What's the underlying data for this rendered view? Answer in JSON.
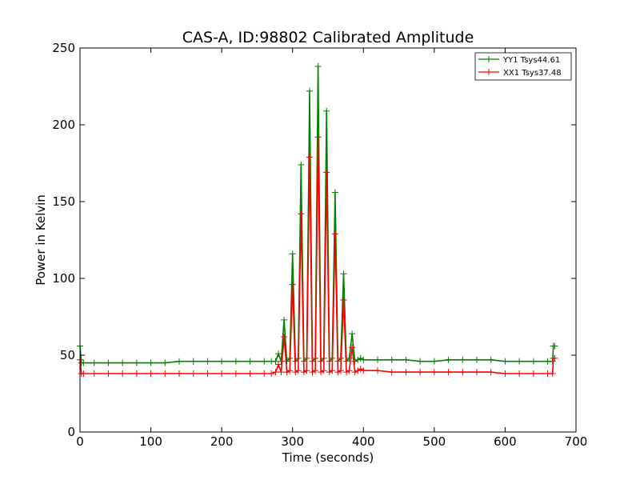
{
  "chart_data": {
    "type": "line",
    "title": "CAS-A, ID:98802 Calibrated Amplitude",
    "xlabel": "Time (seconds)",
    "ylabel": "Power in Kelvin",
    "xlim": [
      0,
      700
    ],
    "ylim": [
      0,
      250
    ],
    "xticks": [
      "0",
      "100",
      "200",
      "300",
      "400",
      "500",
      "600",
      "700"
    ],
    "yticks": [
      "0",
      "50",
      "100",
      "150",
      "200",
      "250"
    ],
    "grid": false,
    "legend_position": "top-right",
    "series": [
      {
        "name": "YY1 Tsys44.61",
        "color": "#008000",
        "x": [
          0,
          2,
          5,
          20,
          40,
          60,
          80,
          100,
          120,
          140,
          160,
          180,
          200,
          220,
          240,
          260,
          270,
          276,
          280,
          284,
          288,
          292,
          296,
          300,
          304,
          308,
          312,
          316,
          320,
          324,
          328,
          332,
          336,
          340,
          344,
          348,
          352,
          356,
          360,
          364,
          368,
          372,
          376,
          380,
          384,
          388,
          392,
          396,
          400,
          420,
          440,
          460,
          480,
          500,
          520,
          540,
          560,
          580,
          600,
          620,
          640,
          660,
          667,
          668,
          670
        ],
        "y": [
          56,
          45,
          45,
          45,
          45,
          45,
          45,
          45,
          45,
          46,
          46,
          46,
          46,
          46,
          46,
          46,
          46,
          46,
          51,
          46,
          73,
          46,
          48,
          116,
          46,
          48,
          174,
          46,
          48,
          222,
          46,
          48,
          238,
          46,
          48,
          209,
          46,
          48,
          156,
          46,
          48,
          103,
          46,
          48,
          64,
          46,
          47,
          48,
          47,
          47,
          47,
          47,
          46,
          46,
          47,
          47,
          47,
          47,
          46,
          46,
          46,
          46,
          46,
          56,
          56
        ]
      },
      {
        "name": "XX1 Tsys37.48",
        "color": "#ff0000",
        "x": [
          0,
          2,
          5,
          20,
          40,
          60,
          80,
          100,
          120,
          140,
          160,
          180,
          200,
          220,
          240,
          260,
          270,
          276,
          280,
          284,
          288,
          292,
          296,
          300,
          304,
          308,
          312,
          316,
          320,
          324,
          328,
          332,
          336,
          340,
          344,
          348,
          352,
          356,
          360,
          364,
          368,
          372,
          376,
          380,
          384,
          388,
          392,
          396,
          400,
          420,
          440,
          460,
          480,
          500,
          520,
          540,
          560,
          580,
          600,
          620,
          640,
          660,
          667,
          668,
          670
        ],
        "y": [
          47,
          38,
          38,
          38,
          38,
          38,
          38,
          38,
          38,
          38,
          38,
          38,
          38,
          38,
          38,
          38,
          38,
          39,
          44,
          39,
          62,
          39,
          40,
          96,
          39,
          40,
          142,
          39,
          40,
          179,
          39,
          40,
          192,
          39,
          40,
          169,
          39,
          40,
          129,
          39,
          40,
          86,
          39,
          40,
          55,
          39,
          40,
          41,
          40,
          40,
          39,
          39,
          39,
          39,
          39,
          39,
          39,
          39,
          38,
          38,
          38,
          38,
          38,
          48,
          48
        ]
      }
    ]
  }
}
